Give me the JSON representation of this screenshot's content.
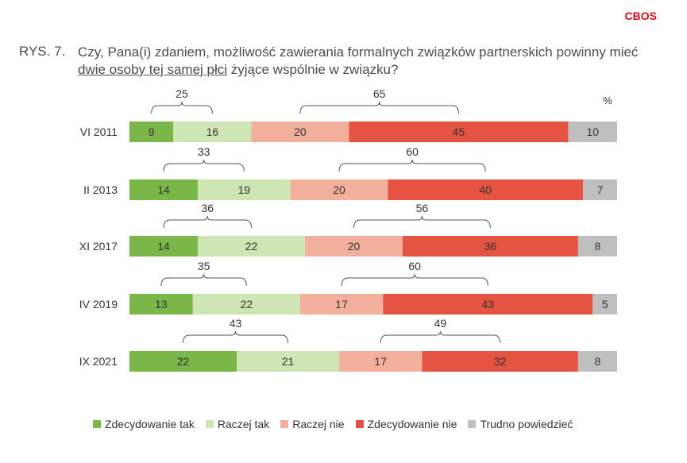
{
  "brand": "CBOS",
  "figure_label": "RYS. 7.",
  "title_part1": "Czy, Pana(i) zdaniem, możliwość zawierania formalnych związków partnerskich powinny mieć ",
  "title_underlined": "dwie osoby tej samej płci",
  "title_part2": " żyjące wspólnie w związku?",
  "chart_data": {
    "type": "bar",
    "orientation": "horizontal",
    "stacked": true,
    "unit_label": "%",
    "categories": [
      "VI 2011",
      "II 2013",
      "XI 2017",
      "IV 2019",
      "IX 2021"
    ],
    "series": [
      {
        "name": "Zdecydowanie tak",
        "color": "#7ab648",
        "values": [
          9,
          14,
          14,
          13,
          22
        ]
      },
      {
        "name": "Raczej tak",
        "color": "#cde6b3",
        "values": [
          16,
          19,
          22,
          22,
          21
        ]
      },
      {
        "name": "Raczej nie",
        "color": "#f2b09c",
        "values": [
          20,
          20,
          20,
          17,
          17
        ]
      },
      {
        "name": "Zdecydowanie nie",
        "color": "#e55343",
        "values": [
          45,
          40,
          36,
          43,
          32
        ]
      },
      {
        "name": "Trudno powiedzieć",
        "color": "#bfbfbf",
        "values": [
          10,
          7,
          8,
          5,
          8
        ]
      }
    ],
    "totals_yes": [
      25,
      33,
      36,
      35,
      43
    ],
    "totals_no": [
      65,
      60,
      56,
      60,
      49
    ],
    "legend_position": "bottom"
  }
}
